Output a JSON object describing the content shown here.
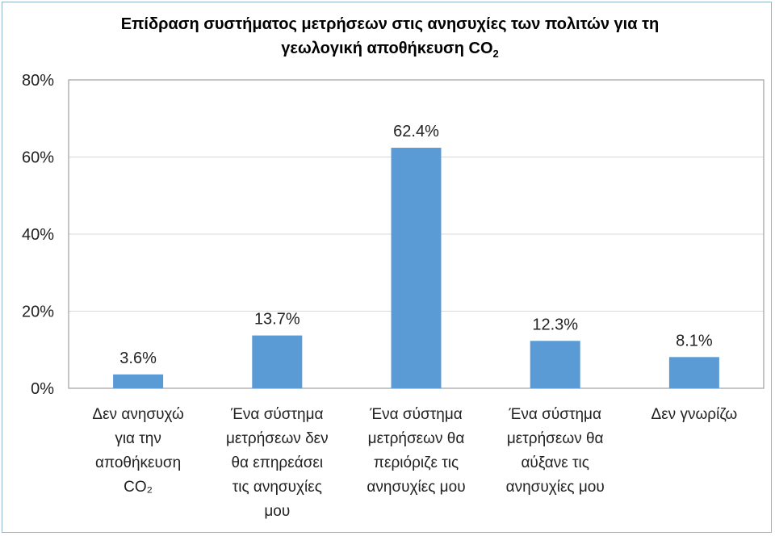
{
  "chart_data": {
    "type": "bar",
    "title_line1": "Επίδραση συστήματος μετρήσεων στις ανησυχίες των πολιτών για τη",
    "title_line2": "γεωλογική αποθήκευση CO",
    "title_subscript": "2",
    "categories": [
      "Δεν ανησυχώ για την αποθήκευση CO₂",
      "Ένα σύστημα μετρήσεων δεν θα επηρεάσει τις ανησυχίες μου",
      "Ένα σύστημα μετρήσεων θα περιόριζε τις ανησυχίες μου",
      "Ένα σύστημα μετρήσεων θα αύξανε τις ανησυχίες μου",
      "Δεν γνωρίζω"
    ],
    "category_lines": [
      [
        "Δεν ανησυχώ",
        "για την",
        "αποθήκευση",
        "CO₂"
      ],
      [
        "Ένα σύστημα",
        "μετρήσεων δεν",
        "θα επηρεάσει",
        "τις ανησυχίες",
        "μου"
      ],
      [
        "Ένα σύστημα",
        "μετρήσεων θα",
        "περιόριζε τις",
        "ανησυχίες μου"
      ],
      [
        "Ένα σύστημα",
        "μετρήσεων θα",
        "αύξανε τις",
        "ανησυχίες μου"
      ],
      [
        "Δεν γνωρίζω"
      ]
    ],
    "values": [
      3.6,
      13.7,
      62.4,
      12.3,
      8.1
    ],
    "data_labels": [
      "3.6%",
      "13.7%",
      "62.4%",
      "12.3%",
      "8.1%"
    ],
    "ylim": [
      0,
      80
    ],
    "yticks": [
      0,
      20,
      40,
      60,
      80
    ],
    "ytick_labels": [
      "0%",
      "20%",
      "40%",
      "60%",
      "80%"
    ],
    "grid": true,
    "bar_color": "#5b9bd5",
    "grid_color": "#d9d9d9",
    "legend": "none"
  }
}
